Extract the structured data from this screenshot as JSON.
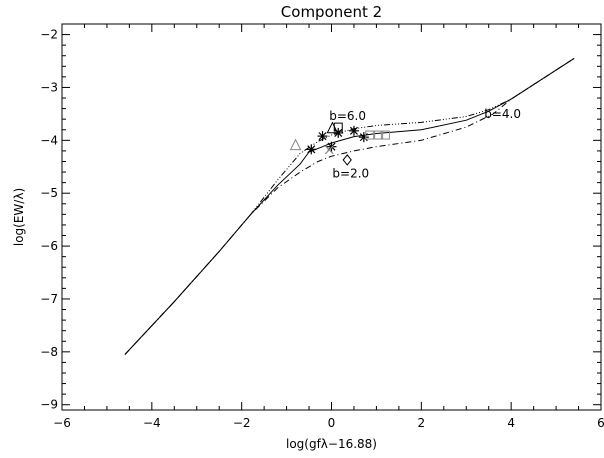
{
  "chart_data": {
    "type": "line",
    "title": "Component 2",
    "xlabel": "log(gfλ−16.88)",
    "ylabel": "log(EW/λ)",
    "xlim": [
      -6,
      6
    ],
    "ylim": [
      -9.1,
      -1.8
    ],
    "xticks": [
      -6,
      -4,
      -2,
      0,
      2,
      4,
      6
    ],
    "yticks": [
      -9,
      -8,
      -7,
      -6,
      -5,
      -4,
      -3,
      -2
    ],
    "xtick_labels": [
      "−6",
      "−4",
      "−2",
      "0",
      "2",
      "4",
      "6"
    ],
    "ytick_labels": [
      "−9",
      "−8",
      "−7",
      "−6",
      "−5",
      "−4",
      "−3",
      "−2"
    ],
    "grid": false,
    "series": [
      {
        "name": "b=2.0",
        "style": "dash-dot",
        "x": [
          -4.6,
          -3.5,
          -2.5,
          -1.8,
          -1.2,
          -0.7,
          -0.3,
          0.0,
          0.5,
          1.0,
          2.0,
          3.0,
          3.6,
          4.0,
          5.4
        ],
        "y": [
          -8.05,
          -7.05,
          -6.1,
          -5.4,
          -4.9,
          -4.6,
          -4.4,
          -4.3,
          -4.2,
          -4.12,
          -4.0,
          -3.75,
          -3.5,
          -3.22,
          -2.45
        ]
      },
      {
        "name": "b=4.0",
        "style": "solid",
        "x": [
          -4.6,
          -3.5,
          -2.5,
          -1.8,
          -1.2,
          -0.7,
          -0.5,
          -0.2,
          0.0,
          0.5,
          1.0,
          2.0,
          3.0,
          3.5,
          4.0,
          5.4
        ],
        "y": [
          -8.05,
          -7.05,
          -6.1,
          -5.4,
          -4.85,
          -4.45,
          -4.22,
          -4.12,
          -4.05,
          -3.93,
          -3.87,
          -3.8,
          -3.62,
          -3.45,
          -3.22,
          -2.45
        ]
      },
      {
        "name": "b=6.0",
        "style": "dash-dot-dot-dot",
        "x": [
          -4.6,
          -3.5,
          -2.5,
          -1.8,
          -1.2,
          -0.7,
          -0.3,
          0.0,
          0.5,
          1.0,
          2.0,
          3.0,
          3.5,
          4.0,
          5.4
        ],
        "y": [
          -8.05,
          -7.05,
          -6.1,
          -5.4,
          -4.75,
          -4.25,
          -4.02,
          -3.9,
          -3.78,
          -3.72,
          -3.66,
          -3.55,
          -3.42,
          -3.22,
          -2.45
        ]
      }
    ],
    "points": [
      {
        "marker": "asterisk",
        "x": -0.45,
        "y": -4.17
      },
      {
        "marker": "asterisk",
        "x": -0.2,
        "y": -3.92
      },
      {
        "marker": "asterisk",
        "x": 0.15,
        "y": -3.86
      },
      {
        "marker": "asterisk",
        "x": 0.5,
        "y": -3.82
      },
      {
        "marker": "asterisk",
        "x": 0.72,
        "y": -3.94
      },
      {
        "marker": "asterisk",
        "x": 0.0,
        "y": -4.12
      },
      {
        "marker": "triangle",
        "x": -0.8,
        "y": -4.1
      },
      {
        "marker": "triangle",
        "x": 0.02,
        "y": -3.78
      },
      {
        "marker": "square",
        "x": 0.15,
        "y": -3.75
      },
      {
        "marker": "square",
        "x": 0.85,
        "y": -3.9
      },
      {
        "marker": "square",
        "x": 1.05,
        "y": -3.9
      },
      {
        "marker": "square",
        "x": 1.2,
        "y": -3.9
      },
      {
        "marker": "diamond",
        "x": 0.35,
        "y": -4.37
      },
      {
        "marker": "cross",
        "x": -0.05,
        "y": -4.18
      }
    ],
    "annotations": [
      {
        "text": "b=6.0",
        "x": -0.05,
        "y": -3.62
      },
      {
        "text": "b=4.0",
        "x": 3.4,
        "y": -3.58
      },
      {
        "text": "b=2.0",
        "x": 0.02,
        "y": -4.7
      }
    ]
  }
}
